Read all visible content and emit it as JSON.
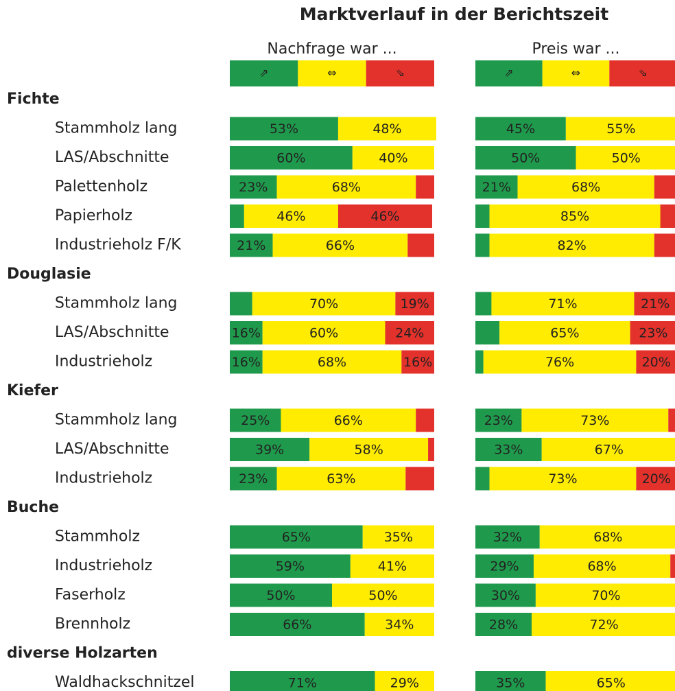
{
  "chart_data": [
    {
      "type": "bar",
      "stacked": true,
      "orientation": "horizontal",
      "title": "Marktverlauf in der Berichtszeit",
      "subtitle": "Nachfrage war ...",
      "categories": [
        "Fichte",
        "Stammholz lang",
        "LAS/Abschnitte",
        "Palettenholz",
        "Papierholz",
        "Industrieholz F/K",
        "Douglasie",
        "Stammholz lang",
        "LAS/Abschnitte",
        "Industrieholz",
        "Kiefer",
        "Stammholz lang",
        "LAS/Abschnitte",
        "Industrieholz",
        "Buche",
        "Stammholz",
        "Industrieholz",
        "Faserholz",
        "Brennholz",
        "diverse Holzarten",
        "Waldhackschnitzel"
      ],
      "xlim": [
        0,
        100
      ],
      "series": [
        {
          "name": "⇗",
          "color": "#1f9a4c",
          "values": [
            null,
            53,
            60,
            23,
            7,
            21,
            null,
            11,
            16,
            16,
            null,
            25,
            39,
            23,
            null,
            65,
            59,
            50,
            66,
            null,
            71
          ],
          "value_labels": [
            null,
            "53%",
            "60%",
            "23%",
            null,
            "21%",
            null,
            null,
            "16%",
            "16%",
            null,
            "25%",
            "39%",
            "23%",
            null,
            "65%",
            "59%",
            "50%",
            "66%",
            null,
            "71%"
          ]
        },
        {
          "name": "⇔",
          "color": "#ffec00",
          "values": [
            null,
            48,
            40,
            68,
            46,
            66,
            null,
            70,
            60,
            68,
            null,
            66,
            58,
            63,
            null,
            35,
            41,
            50,
            34,
            null,
            29
          ],
          "value_labels": [
            null,
            "48%",
            "40%",
            "68%",
            "46%",
            "66%",
            null,
            "70%",
            "60%",
            "68%",
            null,
            "66%",
            "58%",
            "63%",
            null,
            "35%",
            "41%",
            "50%",
            "34%",
            null,
            "29%"
          ]
        },
        {
          "name": "⇘",
          "color": "#e3312b",
          "values": [
            null,
            0,
            0,
            9,
            46,
            13,
            null,
            19,
            24,
            16,
            null,
            9,
            3,
            14,
            null,
            0,
            0,
            0,
            0,
            null,
            0
          ],
          "value_labels": [
            null,
            null,
            null,
            null,
            "46%",
            null,
            null,
            "19%",
            "24%",
            "16%",
            null,
            null,
            null,
            null,
            null,
            null,
            null,
            null,
            null,
            null,
            null
          ]
        }
      ]
    },
    {
      "type": "bar",
      "stacked": true,
      "orientation": "horizontal",
      "subtitle": "Preis war ...",
      "xlim": [
        0,
        100
      ],
      "series": [
        {
          "name": "⇗",
          "color": "#1f9a4c",
          "values": [
            null,
            45,
            50,
            21,
            7,
            7,
            null,
            8,
            12,
            4,
            null,
            23,
            33,
            7,
            null,
            32,
            29,
            30,
            28,
            null,
            35
          ],
          "value_labels": [
            null,
            "45%",
            "50%",
            "21%",
            null,
            null,
            null,
            null,
            null,
            null,
            null,
            "23%",
            "33%",
            null,
            null,
            "32%",
            "29%",
            "30%",
            "28%",
            null,
            "35%"
          ]
        },
        {
          "name": "⇔",
          "color": "#ffec00",
          "values": [
            null,
            55,
            50,
            68,
            85,
            82,
            null,
            71,
            65,
            76,
            null,
            73,
            67,
            73,
            null,
            68,
            68,
            70,
            72,
            null,
            65
          ],
          "value_labels": [
            null,
            "55%",
            "50%",
            "68%",
            "85%",
            "82%",
            null,
            "71%",
            "65%",
            "76%",
            null,
            "73%",
            "67%",
            "73%",
            null,
            "68%",
            "68%",
            "70%",
            "72%",
            null,
            "65%"
          ]
        },
        {
          "name": "⇘",
          "color": "#e3312b",
          "values": [
            null,
            0,
            0,
            11,
            8,
            11,
            null,
            21,
            23,
            20,
            null,
            4,
            0,
            20,
            null,
            0,
            3,
            0,
            0,
            null,
            0
          ],
          "value_labels": [
            null,
            null,
            null,
            null,
            null,
            null,
            null,
            "21%",
            "23%",
            "20%",
            null,
            null,
            null,
            "20%",
            null,
            null,
            null,
            null,
            null,
            null,
            null
          ]
        }
      ]
    }
  ]
}
